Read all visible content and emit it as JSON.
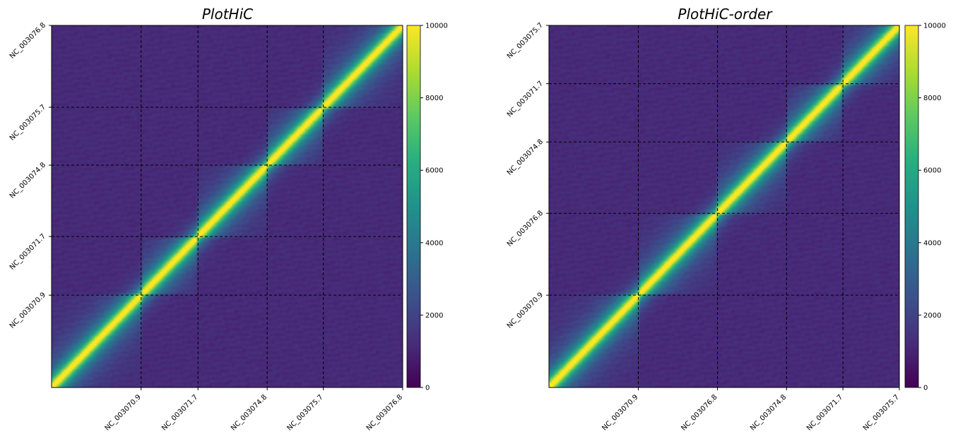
{
  "chart_data": [
    {
      "type": "heatmap",
      "title": "PlotHiC",
      "xlabel": "",
      "ylabel": "",
      "value_range": [
        0,
        10000
      ],
      "colormap": "viridis",
      "colorbar_ticks": [
        0,
        2000,
        4000,
        6000,
        8000,
        10000
      ],
      "x_tick_labels": [
        "NC_003070.9",
        "NC_003071.7",
        "NC_003074.8",
        "NC_003075.7",
        "NC_003076.8"
      ],
      "y_tick_labels": [
        "NC_003070.9",
        "NC_003071.7",
        "NC_003074.8",
        "NC_003075.7",
        "NC_003076.8"
      ],
      "chromosome_boundaries": [
        {
          "name": "NC_003070.9",
          "end": 0.255
        },
        {
          "name": "NC_003071.7",
          "end": 0.417
        },
        {
          "name": "NC_003074.8",
          "end": 0.614
        },
        {
          "name": "NC_003075.7",
          "end": 0.774
        },
        {
          "name": "NC_003076.8",
          "end": 1.0
        }
      ],
      "grid": true
    },
    {
      "type": "heatmap",
      "title": "PlotHiC-order",
      "xlabel": "",
      "ylabel": "",
      "value_range": [
        0,
        10000
      ],
      "colormap": "viridis",
      "colorbar_ticks": [
        0,
        2000,
        4000,
        6000,
        8000,
        10000
      ],
      "x_tick_labels": [
        "NC_003070.9",
        "NC_003076.8",
        "NC_003074.8",
        "NC_003071.7",
        "NC_003075.7"
      ],
      "y_tick_labels": [
        "NC_003070.9",
        "NC_003076.8",
        "NC_003074.8",
        "NC_003071.7",
        "NC_003075.7"
      ],
      "chromosome_boundaries": [
        {
          "name": "NC_003070.9",
          "end": 0.255
        },
        {
          "name": "NC_003076.8",
          "end": 0.481
        },
        {
          "name": "NC_003074.8",
          "end": 0.678
        },
        {
          "name": "NC_003071.7",
          "end": 0.839
        },
        {
          "name": "NC_003075.7",
          "end": 1.0
        }
      ],
      "grid": true
    }
  ]
}
